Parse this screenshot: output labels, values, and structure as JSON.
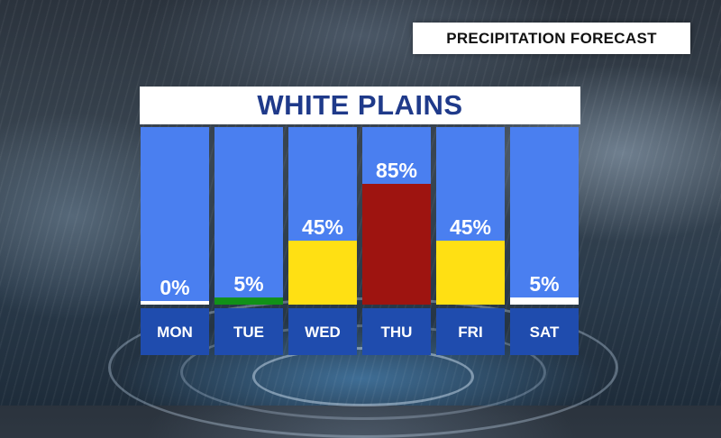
{
  "header": {
    "title": "PRECIPITATION FORECAST"
  },
  "location": {
    "name": "WHITE PLAINS"
  },
  "colors": {
    "panel_blue": "#4a7ff0",
    "label_blue": "#1f4cae",
    "very_low": "#ffffff",
    "low": "#119118",
    "medium": "#ffe013",
    "high": "#9e1410"
  },
  "chart_data": {
    "type": "bar",
    "title": "PRECIPITATION FORECAST",
    "subtitle": "WHITE PLAINS",
    "categories": [
      "MON",
      "TUE",
      "WED",
      "THU",
      "FRI",
      "SAT"
    ],
    "values": [
      0,
      5,
      45,
      85,
      45,
      5
    ],
    "value_labels": [
      "0%",
      "5%",
      "45%",
      "85%",
      "45%",
      "5%"
    ],
    "bar_colors": [
      "#ffffff",
      "#119118",
      "#ffe013",
      "#9e1410",
      "#ffe013",
      "#ffffff"
    ],
    "ylim": [
      0,
      100
    ],
    "grid": false,
    "legend": "none"
  }
}
